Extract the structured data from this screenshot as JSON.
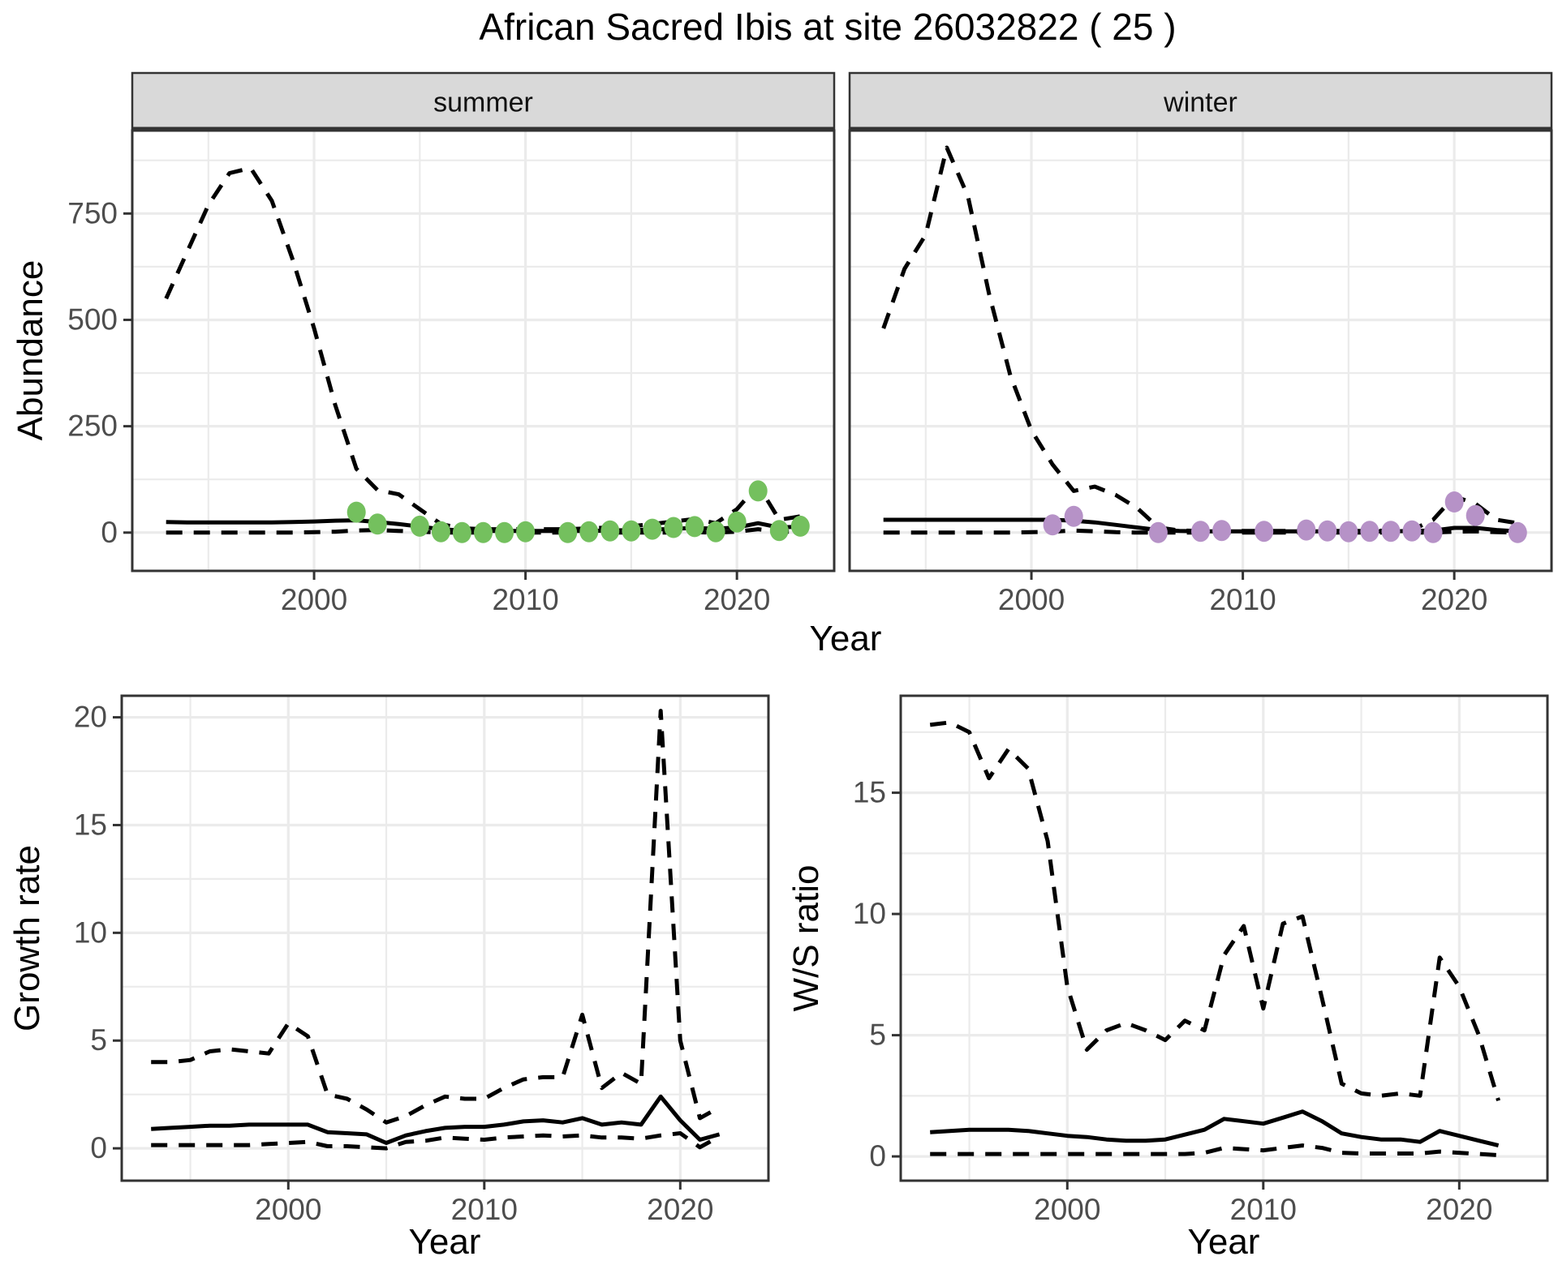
{
  "labels": {
    "title": "African Sacred Ibis at site 26032822 ( 25 )",
    "abundance": "Abundance",
    "growth_rate": "Growth rate",
    "ws_ratio": "W/S ratio",
    "year": "Year"
  },
  "colors": {
    "summer_point": "#74c05e",
    "winter_point": "#b692c7",
    "line": "#000000",
    "grid": "#ebebeb",
    "strip_bg": "#d9d9d9",
    "panel_border": "#333333",
    "tick_text": "#4d4d4d"
  },
  "chart_data": [
    {
      "id": "abundance-summer",
      "type": "line",
      "facet_label": "summer",
      "xlabel": "Year",
      "ylabel": "Abundance",
      "xlim": [
        1991.4,
        2024.6
      ],
      "ylim": [
        -90,
        945
      ],
      "x_ticks": [
        2000,
        2010,
        2020
      ],
      "x_minor": [
        1995,
        2005,
        2015
      ],
      "y_ticks": [
        0,
        250,
        500,
        750
      ],
      "y_minor": [
        125,
        375,
        625,
        875
      ],
      "grid": true,
      "legend": "none",
      "x": [
        1993,
        1994,
        1995,
        1996,
        1997,
        1998,
        1999,
        2000,
        2001,
        2002,
        2003,
        2004,
        2005,
        2006,
        2007,
        2008,
        2009,
        2010,
        2011,
        2012,
        2013,
        2014,
        2015,
        2016,
        2017,
        2018,
        2019,
        2020,
        2021,
        2022,
        2023
      ],
      "series": [
        {
          "name": "upper_95ci",
          "style": "dashed",
          "values": [
            550,
            660,
            770,
            845,
            857,
            780,
            640,
            480,
            300,
            150,
            100,
            90,
            55,
            20,
            10,
            8,
            8,
            8,
            8,
            8,
            10,
            12,
            15,
            20,
            26,
            32,
            22,
            55,
            112,
            30,
            38
          ]
        },
        {
          "name": "fitted",
          "style": "solid",
          "values": [
            25,
            24,
            24,
            24,
            24,
            24,
            25,
            26,
            28,
            29,
            25,
            20,
            14,
            8,
            5,
            4,
            4,
            4,
            4,
            4,
            4,
            5,
            6,
            7,
            9,
            11,
            9,
            12,
            22,
            12,
            14
          ]
        },
        {
          "name": "lower_95ci",
          "style": "dashed",
          "values": [
            0,
            0,
            0,
            0,
            0,
            0,
            0,
            1,
            2,
            5,
            6,
            4,
            2,
            0,
            0,
            0,
            0,
            0,
            0,
            0,
            0,
            0,
            0,
            0,
            0,
            1,
            0,
            2,
            8,
            2,
            2
          ]
        }
      ],
      "points": {
        "name": "summer_observed_counts",
        "color": "#74c05e",
        "data": [
          [
            2002,
            48
          ],
          [
            2003,
            20
          ],
          [
            2005,
            15
          ],
          [
            2006,
            2
          ],
          [
            2007,
            0
          ],
          [
            2008,
            0
          ],
          [
            2009,
            0
          ],
          [
            2010,
            2
          ],
          [
            2012,
            0
          ],
          [
            2013,
            2
          ],
          [
            2014,
            4
          ],
          [
            2015,
            4
          ],
          [
            2016,
            8
          ],
          [
            2017,
            12
          ],
          [
            2018,
            14
          ],
          [
            2019,
            2
          ],
          [
            2020,
            25
          ],
          [
            2021,
            98
          ],
          [
            2022,
            5
          ],
          [
            2023,
            15
          ]
        ]
      }
    },
    {
      "id": "abundance-winter",
      "type": "line",
      "facet_label": "winter",
      "xlabel": "Year",
      "ylabel": "Abundance",
      "xlim": [
        1991.4,
        2024.6
      ],
      "ylim": [
        -90,
        945
      ],
      "x_ticks": [
        2000,
        2010,
        2020
      ],
      "x_minor": [
        1995,
        2005,
        2015
      ],
      "y_ticks": [
        0,
        250,
        500,
        750
      ],
      "y_minor": [
        125,
        375,
        625,
        875
      ],
      "grid": true,
      "legend": "none",
      "x": [
        1993,
        1994,
        1995,
        1996,
        1997,
        1998,
        1999,
        2000,
        2001,
        2002,
        2003,
        2004,
        2005,
        2006,
        2007,
        2008,
        2009,
        2010,
        2011,
        2012,
        2013,
        2014,
        2015,
        2016,
        2017,
        2018,
        2019,
        2020,
        2021,
        2022,
        2023
      ],
      "series": [
        {
          "name": "upper_95ci",
          "style": "dashed",
          "values": [
            480,
            620,
            700,
            905,
            790,
            560,
            370,
            240,
            160,
            98,
            108,
            88,
            58,
            12,
            5,
            4,
            4,
            4,
            4,
            4,
            4,
            4,
            4,
            4,
            5,
            6,
            30,
            85,
            68,
            30,
            22
          ]
        },
        {
          "name": "fitted",
          "style": "solid",
          "values": [
            30,
            30,
            30,
            30,
            30,
            30,
            30,
            30,
            30,
            28,
            24,
            18,
            12,
            6,
            4,
            3,
            3,
            3,
            3,
            3,
            3,
            3,
            3,
            3,
            3,
            4,
            5,
            11,
            11,
            6,
            3
          ]
        },
        {
          "name": "lower_95ci",
          "style": "dashed",
          "values": [
            0,
            0,
            0,
            0,
            0,
            0,
            0,
            1,
            2,
            5,
            3,
            1,
            0,
            0,
            0,
            0,
            0,
            0,
            0,
            0,
            0,
            0,
            0,
            0,
            0,
            0,
            0,
            2,
            3,
            1,
            0
          ]
        }
      ],
      "points": {
        "name": "winter_observed_counts",
        "color": "#b692c7",
        "data": [
          [
            2001,
            18
          ],
          [
            2002,
            38
          ],
          [
            2006,
            0
          ],
          [
            2008,
            3
          ],
          [
            2009,
            5
          ],
          [
            2011,
            3
          ],
          [
            2013,
            6
          ],
          [
            2014,
            4
          ],
          [
            2015,
            2
          ],
          [
            2016,
            3
          ],
          [
            2017,
            3
          ],
          [
            2018,
            4
          ],
          [
            2019,
            0
          ],
          [
            2020,
            72
          ],
          [
            2021,
            40
          ],
          [
            2023,
            0
          ]
        ]
      }
    },
    {
      "id": "growth-rate",
      "type": "line",
      "facet_label": null,
      "xlabel": "Year",
      "ylabel": "Growth rate",
      "xlim": [
        1991.5,
        2024.5
      ],
      "ylim": [
        -1.5,
        21
      ],
      "x_ticks": [
        2000,
        2010,
        2020
      ],
      "x_minor": [
        1995,
        2005,
        2015
      ],
      "y_ticks": [
        0,
        5,
        10,
        15,
        20
      ],
      "y_minor": [
        2.5,
        7.5,
        12.5,
        17.5
      ],
      "grid": true,
      "legend": "none",
      "x": [
        1993,
        1994,
        1995,
        1996,
        1997,
        1998,
        1999,
        2000,
        2001,
        2002,
        2003,
        2004,
        2005,
        2006,
        2007,
        2008,
        2009,
        2010,
        2011,
        2012,
        2013,
        2014,
        2015,
        2016,
        2017,
        2018,
        2019,
        2020,
        2021,
        2022
      ],
      "series": [
        {
          "name": "upper_95ci",
          "style": "dashed",
          "values": [
            4.0,
            4.0,
            4.1,
            4.5,
            4.6,
            4.5,
            4.4,
            5.8,
            5.2,
            2.5,
            2.3,
            1.8,
            1.2,
            1.5,
            2.0,
            2.4,
            2.3,
            2.3,
            2.8,
            3.2,
            3.3,
            3.3,
            6.2,
            2.8,
            3.5,
            3.0,
            20.3,
            5.0,
            1.4,
            1.9
          ]
        },
        {
          "name": "fitted",
          "style": "solid",
          "values": [
            0.9,
            0.95,
            1.0,
            1.05,
            1.05,
            1.1,
            1.1,
            1.1,
            1.1,
            0.75,
            0.7,
            0.65,
            0.25,
            0.6,
            0.8,
            0.95,
            1.0,
            1.0,
            1.1,
            1.25,
            1.3,
            1.2,
            1.4,
            1.1,
            1.2,
            1.1,
            2.4,
            1.3,
            0.4,
            0.65
          ]
        },
        {
          "name": "lower_95ci",
          "style": "dashed",
          "values": [
            0.15,
            0.15,
            0.15,
            0.15,
            0.15,
            0.15,
            0.2,
            0.25,
            0.3,
            0.1,
            0.1,
            0.05,
            0.0,
            0.3,
            0.35,
            0.5,
            0.45,
            0.4,
            0.5,
            0.55,
            0.6,
            0.55,
            0.6,
            0.5,
            0.5,
            0.45,
            0.6,
            0.7,
            0.05,
            0.55
          ]
        }
      ],
      "points": null
    },
    {
      "id": "ws-ratio",
      "type": "line",
      "facet_label": null,
      "xlabel": "Year",
      "ylabel": "W/S ratio",
      "xlim": [
        1991.5,
        2024.5
      ],
      "ylim": [
        -1,
        19
      ],
      "x_ticks": [
        2000,
        2010,
        2020
      ],
      "x_minor": [
        1995,
        2005,
        2015
      ],
      "y_ticks": [
        0,
        5,
        10,
        15
      ],
      "y_minor": [
        2.5,
        7.5,
        12.5,
        17.5
      ],
      "grid": true,
      "legend": "none",
      "x": [
        1993,
        1994,
        1995,
        1996,
        1997,
        1998,
        1999,
        2000,
        2001,
        2002,
        2003,
        2004,
        2005,
        2006,
        2007,
        2008,
        2009,
        2010,
        2011,
        2012,
        2013,
        2014,
        2015,
        2016,
        2017,
        2018,
        2019,
        2020,
        2021,
        2022
      ],
      "series": [
        {
          "name": "upper_95ci",
          "style": "dashed",
          "values": [
            17.8,
            17.9,
            17.5,
            15.6,
            16.8,
            16.0,
            13.0,
            7.0,
            4.4,
            5.2,
            5.5,
            5.2,
            4.8,
            5.6,
            5.2,
            8.3,
            9.5,
            6.1,
            9.6,
            9.9,
            6.5,
            3.0,
            2.6,
            2.5,
            2.6,
            2.5,
            8.2,
            7.0,
            5.0,
            2.3
          ]
        },
        {
          "name": "fitted",
          "style": "solid",
          "values": [
            1.0,
            1.05,
            1.1,
            1.1,
            1.1,
            1.05,
            0.95,
            0.85,
            0.8,
            0.7,
            0.65,
            0.65,
            0.7,
            0.9,
            1.1,
            1.55,
            1.45,
            1.35,
            1.6,
            1.85,
            1.45,
            0.95,
            0.8,
            0.7,
            0.7,
            0.6,
            1.05,
            0.85,
            0.65,
            0.45
          ]
        },
        {
          "name": "lower_95ci",
          "style": "dashed",
          "values": [
            0.1,
            0.1,
            0.1,
            0.1,
            0.1,
            0.1,
            0.1,
            0.1,
            0.1,
            0.1,
            0.1,
            0.1,
            0.1,
            0.1,
            0.15,
            0.35,
            0.3,
            0.25,
            0.35,
            0.45,
            0.35,
            0.15,
            0.12,
            0.12,
            0.12,
            0.12,
            0.2,
            0.15,
            0.1,
            0.05
          ]
        }
      ],
      "points": null
    }
  ]
}
